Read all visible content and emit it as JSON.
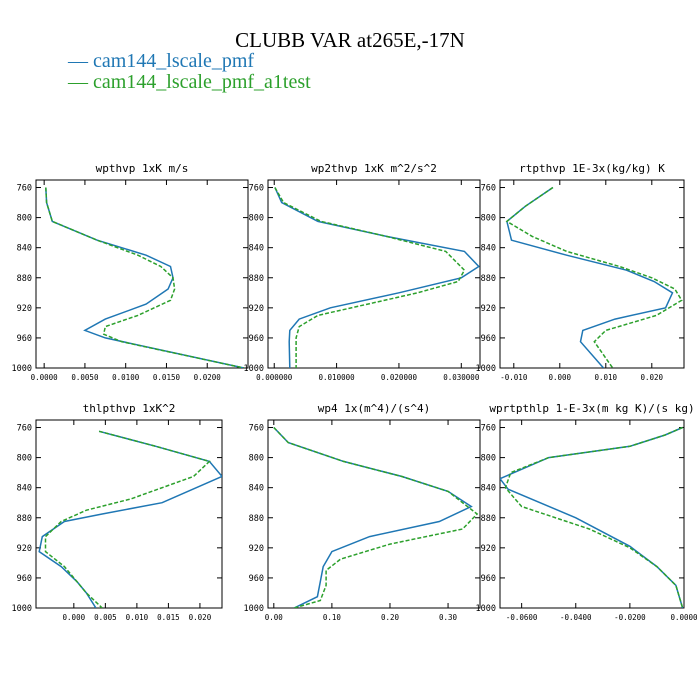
{
  "title": "CLUBB VAR at265E,-17N",
  "legend": [
    {
      "label": "— cam144_lscale_pmf",
      "color": "#1f77b4"
    },
    {
      "label": "— cam144_lscale_pmf_a1test",
      "color": "#2ca02c"
    }
  ],
  "chart_data": [
    {
      "type": "line",
      "title": "wpthvp  1xK m/s",
      "xlim": [
        -0.001,
        0.025
      ],
      "ylim": [
        1000,
        750
      ],
      "xticks": [
        0,
        0.005,
        0.01,
        0.015,
        0.02
      ],
      "xticklabels": [
        "0.0000",
        "0.0050",
        "0.0100",
        "0.0150",
        "0.0200"
      ],
      "yticks": [
        760,
        800,
        840,
        880,
        920,
        960,
        1000
      ],
      "series": [
        {
          "name": "cam144_lscale_pmf",
          "color": "#1f77b4",
          "dash": false,
          "x": [
            0.0002,
            0.0003,
            0.001,
            0.0065,
            0.0125,
            0.0155,
            0.0158,
            0.0152,
            0.0125,
            0.0075,
            0.005,
            0.0075,
            0.0245
          ],
          "y": [
            760,
            780,
            805,
            830,
            850,
            865,
            880,
            895,
            915,
            935,
            950,
            960,
            1000
          ]
        },
        {
          "name": "cam144_lscale_pmf_a1test",
          "color": "#2ca02c",
          "dash": true,
          "x": [
            0.0002,
            0.0003,
            0.001,
            0.0065,
            0.0115,
            0.0143,
            0.0158,
            0.016,
            0.0155,
            0.0115,
            0.0075,
            0.0073,
            0.0095,
            0.0245
          ],
          "y": [
            760,
            780,
            805,
            830,
            850,
            865,
            880,
            895,
            910,
            930,
            945,
            955,
            965,
            1000
          ]
        }
      ]
    },
    {
      "type": "line",
      "title": "wp2thvp  1xK m^2/s^2",
      "xlim": [
        -0.001,
        0.033
      ],
      "ylim": [
        1000,
        750
      ],
      "xticks": [
        0,
        0.01,
        0.02,
        0.03
      ],
      "xticklabels": [
        "0.000000",
        "0.010000",
        "0.020000",
        "0.030000"
      ],
      "yticks": [
        760,
        800,
        840,
        880,
        920,
        960,
        1000
      ],
      "series": [
        {
          "name": "cam144_lscale_pmf",
          "color": "#1f77b4",
          "dash": false,
          "x": [
            0.0001,
            0.0012,
            0.007,
            0.018,
            0.0305,
            0.0328,
            0.03,
            0.02,
            0.009,
            0.004,
            0.0025,
            0.0024,
            0.0025
          ],
          "y": [
            760,
            780,
            805,
            825,
            845,
            865,
            880,
            900,
            920,
            935,
            950,
            965,
            1000
          ]
        },
        {
          "name": "cam144_lscale_pmf_a1test",
          "color": "#2ca02c",
          "dash": true,
          "x": [
            0.0001,
            0.0015,
            0.0075,
            0.018,
            0.0275,
            0.0305,
            0.0295,
            0.023,
            0.015,
            0.007,
            0.004,
            0.0035,
            0.0035
          ],
          "y": [
            760,
            780,
            805,
            825,
            845,
            870,
            885,
            900,
            915,
            930,
            945,
            960,
            1000
          ]
        }
      ]
    },
    {
      "type": "line",
      "title": "rtpthvp  1E-3x(kg/kg) K",
      "xlim": [
        -0.013,
        0.027
      ],
      "ylim": [
        1000,
        750
      ],
      "xticks": [
        -0.01,
        0,
        0.01,
        0.02
      ],
      "xticklabels": [
        "-0.010",
        "0.000",
        "0.010",
        "0.020"
      ],
      "yticks": [
        760,
        800,
        840,
        880,
        920,
        960,
        1000
      ],
      "series": [
        {
          "name": "cam144_lscale_pmf",
          "color": "#1f77b4",
          "dash": false,
          "x": [
            -0.0015,
            -0.0075,
            -0.0115,
            -0.0105,
            0.0015,
            0.0145,
            0.0205,
            0.0245,
            0.023,
            0.012,
            0.005,
            0.0045,
            0.0095
          ],
          "y": [
            760,
            785,
            805,
            830,
            850,
            870,
            885,
            900,
            920,
            935,
            950,
            965,
            1000
          ]
        },
        {
          "name": "cam144_lscale_pmf_a1test",
          "color": "#2ca02c",
          "dash": true,
          "x": [
            -0.0015,
            -0.0075,
            -0.0115,
            -0.006,
            0.0015,
            0.013,
            0.02,
            0.025,
            0.0265,
            0.021,
            0.01,
            0.0075,
            0.0115
          ],
          "y": [
            760,
            785,
            805,
            825,
            845,
            865,
            880,
            895,
            910,
            930,
            950,
            965,
            1000
          ]
        }
      ]
    },
    {
      "type": "line",
      "title": "thlpthvp  1xK^2",
      "xlim": [
        -0.006,
        0.0235
      ],
      "ylim": [
        1000,
        750
      ],
      "xticks": [
        0,
        0.005,
        0.01,
        0.015,
        0.02
      ],
      "xticklabels": [
        "0.000",
        "0.005",
        "0.010",
        "0.015",
        "0.020"
      ],
      "yticks": [
        760,
        800,
        840,
        880,
        920,
        960,
        1000
      ],
      "series": [
        {
          "name": "cam144_lscale_pmf",
          "color": "#1f77b4",
          "dash": false,
          "x": [
            0.004,
            0.013,
            0.0215,
            0.0235,
            0.014,
            0.0045,
            -0.0015,
            -0.005,
            -0.0055,
            -0.002,
            0.0005,
            0.002,
            0.0035
          ],
          "y": [
            765,
            785,
            805,
            825,
            860,
            875,
            885,
            905,
            925,
            945,
            965,
            980,
            1000
          ]
        },
        {
          "name": "cam144_lscale_pmf_a1test",
          "color": "#2ca02c",
          "dash": true,
          "x": [
            0.004,
            0.013,
            0.0215,
            0.019,
            0.009,
            0.002,
            -0.002,
            -0.0045,
            -0.0045,
            -0.0015,
            0.0005,
            0.002,
            0.0045
          ],
          "y": [
            765,
            785,
            805,
            825,
            855,
            870,
            885,
            905,
            925,
            945,
            965,
            980,
            1000
          ]
        }
      ]
    },
    {
      "type": "line",
      "title": "wp4  1x(m^4)/(s^4)",
      "xlim": [
        -0.01,
        0.355
      ],
      "ylim": [
        1000,
        750
      ],
      "xticks": [
        0,
        0.1,
        0.2,
        0.3
      ],
      "xticklabels": [
        "0.00",
        "0.10",
        "0.20",
        "0.30"
      ],
      "yticks": [
        760,
        800,
        840,
        880,
        920,
        960,
        1000
      ],
      "series": [
        {
          "name": "cam144_lscale_pmf",
          "color": "#1f77b4",
          "dash": false,
          "x": [
            0.0,
            0.025,
            0.12,
            0.22,
            0.3,
            0.34,
            0.285,
            0.165,
            0.1,
            0.085,
            0.08,
            0.075,
            0.035
          ],
          "y": [
            760,
            780,
            805,
            825,
            845,
            865,
            885,
            905,
            925,
            945,
            965,
            985,
            1000
          ]
        },
        {
          "name": "cam144_lscale_pmf_a1test",
          "color": "#2ca02c",
          "dash": true,
          "x": [
            0.0,
            0.025,
            0.12,
            0.22,
            0.3,
            0.35,
            0.325,
            0.2,
            0.115,
            0.09,
            0.09,
            0.08,
            0.035
          ],
          "y": [
            760,
            780,
            805,
            825,
            845,
            875,
            895,
            915,
            935,
            950,
            970,
            990,
            1000
          ]
        }
      ]
    },
    {
      "type": "line",
      "title": "wprtpthlp  1-E-3x(m kg K)/(s kg)",
      "xlim": [
        -0.068,
        0.0
      ],
      "ylim": [
        1000,
        750
      ],
      "xticks": [
        -0.06,
        -0.04,
        -0.02,
        0
      ],
      "xticklabels": [
        "-0.0600",
        "-0.0400",
        "-0.0200",
        "0.0000"
      ],
      "yticks": [
        760,
        800,
        840,
        880,
        920,
        960,
        1000
      ],
      "series": [
        {
          "name": "cam144_lscale_pmf",
          "color": "#1f77b4",
          "dash": false,
          "x": [
            -0.0005,
            -0.007,
            -0.02,
            -0.05,
            -0.068,
            -0.065,
            -0.04,
            -0.02,
            -0.01,
            -0.003,
            -0.0005
          ],
          "y": [
            760,
            770,
            785,
            800,
            828,
            842,
            880,
            918,
            945,
            970,
            1000
          ]
        },
        {
          "name": "cam144_lscale_pmf_a1test",
          "color": "#2ca02c",
          "dash": true,
          "x": [
            -0.0005,
            -0.007,
            -0.02,
            -0.05,
            -0.064,
            -0.066,
            -0.06,
            -0.035,
            -0.02,
            -0.01,
            -0.003,
            -0.0005
          ],
          "y": [
            760,
            770,
            785,
            800,
            820,
            840,
            865,
            895,
            920,
            945,
            970,
            1000
          ]
        }
      ]
    }
  ]
}
